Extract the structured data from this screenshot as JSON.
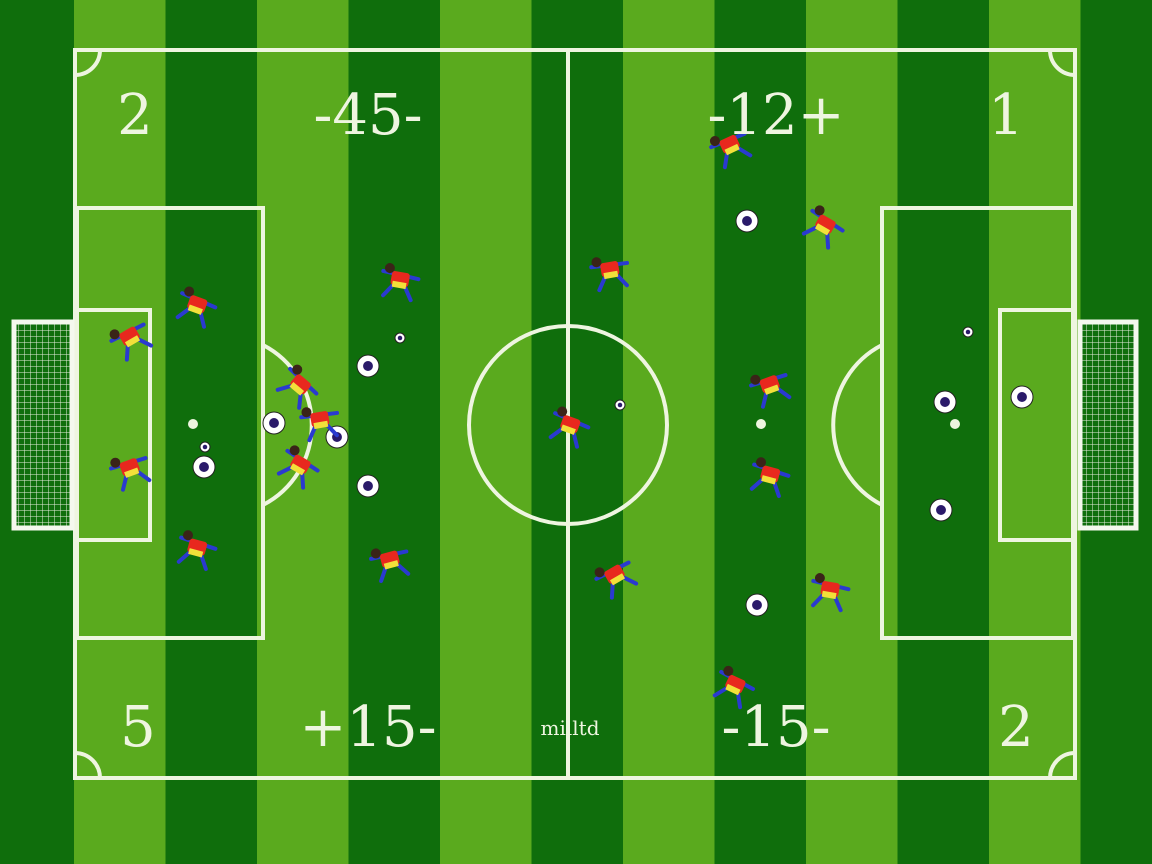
{
  "scoreboard": {
    "top_left_number": "2",
    "top_left_score": "-45-",
    "top_right_score": "-12+",
    "top_right_number": "1",
    "bottom_left_number": "5",
    "bottom_left_score": "+15-",
    "bottom_center_label": "milltd",
    "bottom_right_score": "-15-",
    "bottom_right_number": "2"
  },
  "colors": {
    "grass_light": "#5aaa1e",
    "grass_dark": "#0f6e0c",
    "lines": "#eef5e0",
    "player_shirt": "#e8281e",
    "player_shorts": "#2a3ad0",
    "player_trim": "#f2e03a"
  }
}
